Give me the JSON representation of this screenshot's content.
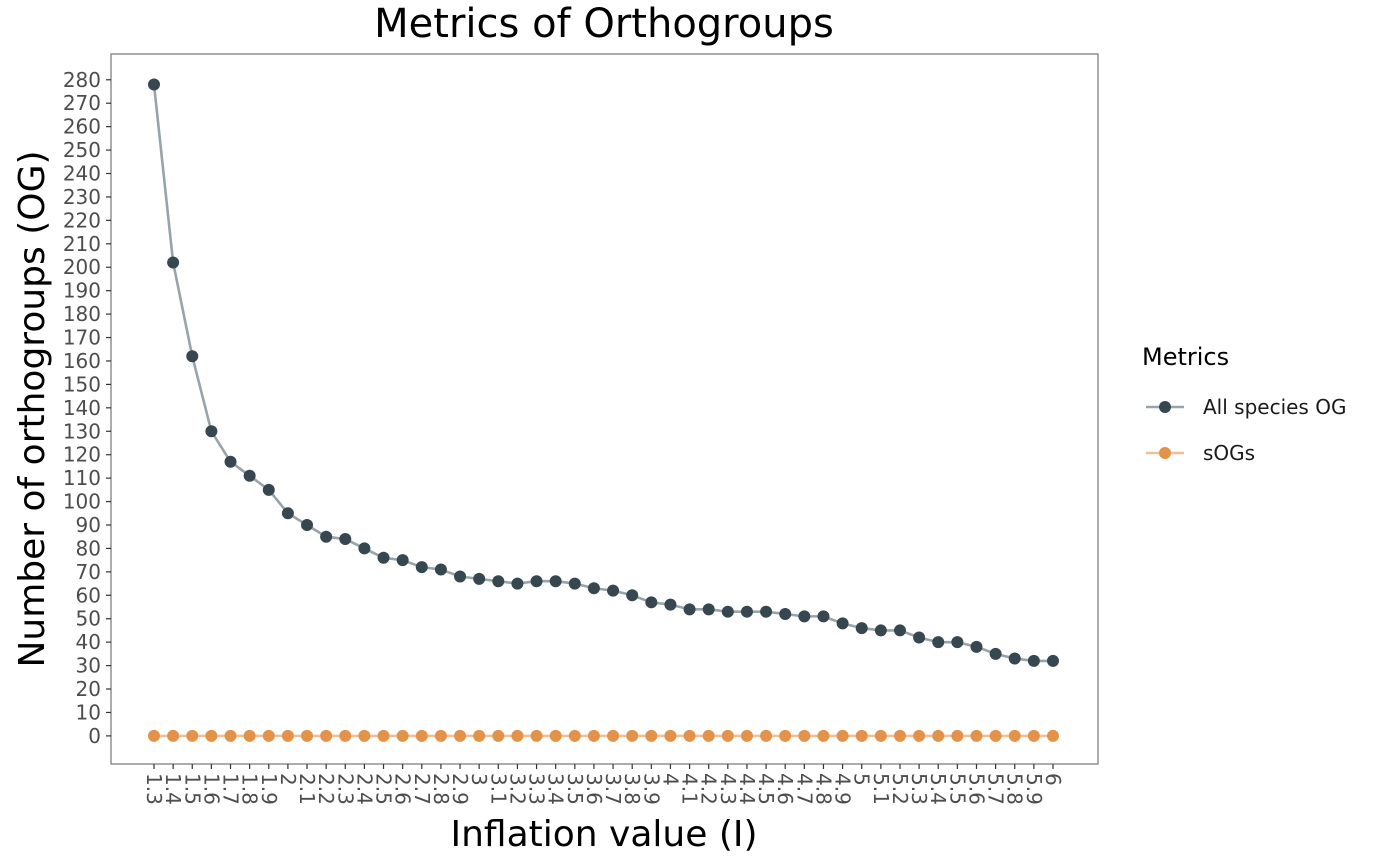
{
  "chart_data": {
    "type": "line",
    "title": "Metrics of Orthogroups",
    "xlabel": "Inflation value (I)",
    "ylabel": "Number of orthogroups (OG)",
    "x": [
      "1.3",
      "1.4",
      "1.5",
      "1.6",
      "1.7",
      "1.8",
      "1.9",
      "2",
      "2.1",
      "2.2",
      "2.3",
      "2.4",
      "2.5",
      "2.6",
      "2.7",
      "2.8",
      "2.9",
      "3",
      "3.1",
      "3.2",
      "3.3",
      "3.4",
      "3.5",
      "3.6",
      "3.7",
      "3.8",
      "3.9",
      "4",
      "4.1",
      "4.2",
      "4.3",
      "4.4",
      "4.5",
      "4.6",
      "4.7",
      "4.8",
      "4.9",
      "5",
      "5.1",
      "5.2",
      "5.3",
      "5.4",
      "5.5",
      "5.6",
      "5.7",
      "5.8",
      "5.9",
      "6"
    ],
    "ylim": [
      -12,
      291
    ],
    "yticks": [
      0,
      10,
      20,
      30,
      40,
      50,
      60,
      70,
      80,
      90,
      100,
      110,
      120,
      130,
      140,
      150,
      160,
      170,
      180,
      190,
      200,
      210,
      220,
      230,
      240,
      250,
      260,
      270,
      280
    ],
    "grid": false,
    "legend": {
      "title": "Metrics",
      "position": "right"
    },
    "series": [
      {
        "name": "All species OG",
        "color": "#37474f",
        "line_color": "#98a4a9",
        "values": [
          278,
          202,
          162,
          130,
          117,
          111,
          105,
          95,
          90,
          85,
          84,
          80,
          76,
          75,
          72,
          71,
          68,
          67,
          66,
          65,
          66,
          66,
          65,
          63,
          62,
          60,
          57,
          56,
          54,
          54,
          53,
          53,
          53,
          52,
          51,
          51,
          48,
          46,
          45,
          45,
          42,
          40,
          40,
          38,
          35,
          33,
          32,
          32
        ]
      },
      {
        "name": "sOGs",
        "color": "#e3924a",
        "line_color": "#efbf95",
        "values": [
          0,
          0,
          0,
          0,
          0,
          0,
          0,
          0,
          0,
          0,
          0,
          0,
          0,
          0,
          0,
          0,
          0,
          0,
          0,
          0,
          0,
          0,
          0,
          0,
          0,
          0,
          0,
          0,
          0,
          0,
          0,
          0,
          0,
          0,
          0,
          0,
          0,
          0,
          0,
          0,
          0,
          0,
          0,
          0,
          0,
          0,
          0,
          0
        ]
      }
    ]
  }
}
